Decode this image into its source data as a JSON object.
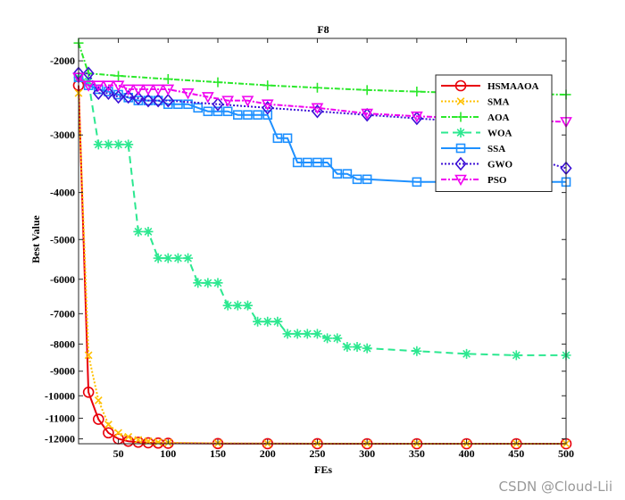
{
  "chart_data": {
    "type": "line",
    "title": "F8",
    "xlabel": "FEs",
    "ylabel": "Best Value",
    "xlim": [
      10,
      500
    ],
    "xticks": [
      50,
      100,
      150,
      200,
      250,
      300,
      350,
      400,
      450,
      500
    ],
    "ytick_values": [
      -2000,
      -3000,
      -4000,
      -5000,
      -6000,
      -7000,
      -8000,
      -9000,
      -10000,
      -11000,
      -12000
    ],
    "ytick_labels": [
      "-2000",
      "-3000",
      "-4000",
      "-5000",
      "-6000",
      "-7000",
      "-8000",
      "-9000",
      "-10000",
      "-11000",
      "-12000"
    ],
    "y_scale": "symlog",
    "y_top": -1750,
    "y_bottom": -12250,
    "grid": false,
    "legend_position": "top-right",
    "series": [
      {
        "name": "HSMAAOA",
        "color": "#e8000b",
        "dash": "solid",
        "marker": "circle",
        "x": [
          10,
          20,
          30,
          40,
          50,
          60,
          70,
          80,
          90,
          100,
          150,
          200,
          250,
          300,
          350,
          400,
          450,
          500
        ],
        "y": [
          -2300,
          -9850,
          -11050,
          -11700,
          -12000,
          -12120,
          -12170,
          -12200,
          -12215,
          -12225,
          -12240,
          -12245,
          -12248,
          -12250,
          -12250,
          -12250,
          -12250,
          -12250
        ]
      },
      {
        "name": "SMA",
        "color": "#ffc000",
        "dash": "2,2",
        "marker": "x",
        "x": [
          10,
          20,
          30,
          40,
          50,
          60,
          70,
          80,
          90,
          100,
          150,
          200,
          250,
          300,
          350,
          400,
          450,
          500
        ],
        "y": [
          -2400,
          -8400,
          -10200,
          -11300,
          -11700,
          -11900,
          -12050,
          -12120,
          -12170,
          -12200,
          -12230,
          -12240,
          -12245,
          -12245,
          -12248,
          -12250,
          -12250,
          -12250
        ]
      },
      {
        "name": "AOA",
        "color": "#2be82b",
        "dash": "6,2,2,2",
        "marker": "plus",
        "x": [
          10,
          20,
          50,
          100,
          150,
          200,
          250,
          300,
          350,
          400,
          450,
          500
        ],
        "y": [
          -1800,
          -2150,
          -2180,
          -2220,
          -2260,
          -2300,
          -2330,
          -2360,
          -2380,
          -2400,
          -2410,
          -2420
        ]
      },
      {
        "name": "WOA",
        "color": "#2ce890",
        "dash": "8,5",
        "marker": "star",
        "x": [
          10,
          20,
          30,
          40,
          50,
          60,
          70,
          80,
          90,
          100,
          110,
          120,
          130,
          140,
          150,
          160,
          170,
          180,
          190,
          200,
          210,
          220,
          230,
          240,
          250,
          260,
          270,
          280,
          290,
          300,
          350,
          400,
          450,
          500
        ],
        "y": [
          -2200,
          -2250,
          -3150,
          -3150,
          -3150,
          -3150,
          -4820,
          -4820,
          -5450,
          -5450,
          -5450,
          -5450,
          -6100,
          -6100,
          -6100,
          -6750,
          -6750,
          -6750,
          -7250,
          -7250,
          -7250,
          -7650,
          -7650,
          -7650,
          -7650,
          -7800,
          -7800,
          -8100,
          -8100,
          -8150,
          -8250,
          -8350,
          -8400,
          -8400
        ]
      },
      {
        "name": "SSA",
        "color": "#1e90ff",
        "dash": "solid",
        "marker": "square",
        "x": [
          10,
          20,
          30,
          40,
          50,
          60,
          70,
          80,
          90,
          100,
          110,
          120,
          130,
          140,
          150,
          160,
          170,
          180,
          190,
          200,
          210,
          220,
          230,
          240,
          250,
          260,
          270,
          280,
          290,
          300,
          350,
          400,
          450,
          500
        ],
        "y": [
          -2200,
          -2300,
          -2350,
          -2380,
          -2420,
          -2460,
          -2500,
          -2500,
          -2500,
          -2550,
          -2550,
          -2550,
          -2600,
          -2650,
          -2650,
          -2650,
          -2700,
          -2700,
          -2700,
          -2700,
          -3050,
          -3050,
          -3450,
          -3450,
          -3450,
          -3450,
          -3650,
          -3650,
          -3750,
          -3750,
          -3800,
          -3800,
          -3800,
          -3800
        ]
      },
      {
        "name": "GWO",
        "color": "#3c10d6",
        "dash": "2,2",
        "marker": "diamond",
        "x": [
          10,
          20,
          30,
          40,
          50,
          60,
          70,
          80,
          90,
          100,
          150,
          200,
          250,
          300,
          350,
          400,
          450,
          480,
          500
        ],
        "y": [
          -2150,
          -2150,
          -2400,
          -2400,
          -2450,
          -2450,
          -2470,
          -2500,
          -2500,
          -2500,
          -2550,
          -2600,
          -2650,
          -2700,
          -2750,
          -2800,
          -2850,
          -3450,
          -3550
        ]
      },
      {
        "name": "PSO",
        "color": "#f000f0",
        "dash": "6,2,2,2",
        "marker": "triangle-down",
        "x": [
          10,
          20,
          30,
          40,
          50,
          60,
          70,
          80,
          90,
          100,
          120,
          140,
          160,
          180,
          200,
          250,
          300,
          350,
          400,
          450,
          500
        ],
        "y": [
          -2200,
          -2300,
          -2300,
          -2300,
          -2300,
          -2350,
          -2350,
          -2350,
          -2350,
          -2350,
          -2400,
          -2450,
          -2500,
          -2500,
          -2550,
          -2600,
          -2680,
          -2720,
          -2750,
          -2780,
          -2800
        ]
      }
    ]
  },
  "watermark": "CSDN @Cloud-Lii"
}
